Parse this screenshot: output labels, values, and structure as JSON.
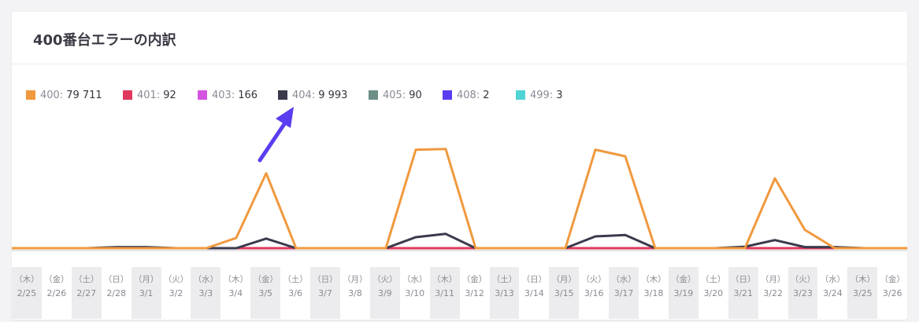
{
  "card": {
    "title": "400番台エラーの内訳"
  },
  "legend": [
    {
      "code": "400",
      "count": "79 711",
      "color": "#f0993e"
    },
    {
      "code": "401",
      "count": "92",
      "color": "#e0385c"
    },
    {
      "code": "403",
      "count": "166",
      "color": "#d655e0"
    },
    {
      "code": "404",
      "count": "9 993",
      "color": "#3a3a4c"
    },
    {
      "code": "405",
      "count": "90",
      "color": "#6d8f88"
    },
    {
      "code": "408",
      "count": "2",
      "color": "#5a3df0"
    },
    {
      "code": "499",
      "count": "3",
      "color": "#4fd4d6"
    }
  ],
  "annotation": {
    "type": "arrow",
    "color": "#5a3df0",
    "points_to": "404"
  },
  "dates": [
    {
      "weekday": "（木）",
      "date": "2/25"
    },
    {
      "weekday": "（金）",
      "date": "2/26"
    },
    {
      "weekday": "（土）",
      "date": "2/27"
    },
    {
      "weekday": "（日）",
      "date": "2/28"
    },
    {
      "weekday": "（月）",
      "date": "3/1"
    },
    {
      "weekday": "（火）",
      "date": "3/2"
    },
    {
      "weekday": "（水）",
      "date": "3/3"
    },
    {
      "weekday": "（木）",
      "date": "3/4"
    },
    {
      "weekday": "（金）",
      "date": "3/5"
    },
    {
      "weekday": "（土）",
      "date": "3/6"
    },
    {
      "weekday": "（日）",
      "date": "3/7"
    },
    {
      "weekday": "（月）",
      "date": "3/8"
    },
    {
      "weekday": "（火）",
      "date": "3/9"
    },
    {
      "weekday": "（水）",
      "date": "3/10"
    },
    {
      "weekday": "（木）",
      "date": "3/11"
    },
    {
      "weekday": "（金）",
      "date": "3/12"
    },
    {
      "weekday": "（土）",
      "date": "3/13"
    },
    {
      "weekday": "（日）",
      "date": "3/14"
    },
    {
      "weekday": "（月）",
      "date": "3/15"
    },
    {
      "weekday": "（火）",
      "date": "3/16"
    },
    {
      "weekday": "（水）",
      "date": "3/17"
    },
    {
      "weekday": "（木）",
      "date": "3/18"
    },
    {
      "weekday": "（金）",
      "date": "3/19"
    },
    {
      "weekday": "（土）",
      "date": "3/20"
    },
    {
      "weekday": "（日）",
      "date": "3/21"
    },
    {
      "weekday": "（月）",
      "date": "3/22"
    },
    {
      "weekday": "（火）",
      "date": "3/23"
    },
    {
      "weekday": "（水）",
      "date": "3/24"
    },
    {
      "weekday": "（木）",
      "date": "3/25"
    },
    {
      "weekday": "（金）",
      "date": "3/26"
    }
  ],
  "chart_data": {
    "type": "line",
    "title": "400番台エラーの内訳",
    "x": [
      "2/25",
      "2/26",
      "2/27",
      "2/28",
      "3/1",
      "3/2",
      "3/3",
      "3/4",
      "3/5",
      "3/6",
      "3/7",
      "3/8",
      "3/9",
      "3/10",
      "3/11",
      "3/12",
      "3/13",
      "3/14",
      "3/15",
      "3/16",
      "3/17",
      "3/18",
      "3/19",
      "3/20",
      "3/21",
      "3/22",
      "3/23",
      "3/24",
      "3/25",
      "3/26"
    ],
    "ylim": [
      0,
      14000
    ],
    "grid": false,
    "legend_position": "top-left",
    "series": [
      {
        "name": "400",
        "color": "#f0993e",
        "values": [
          0,
          0,
          0,
          0,
          0,
          0,
          0,
          1400,
          10200,
          0,
          0,
          0,
          0,
          13400,
          13500,
          0,
          0,
          0,
          0,
          13400,
          12500,
          0,
          0,
          0,
          0,
          9500,
          2500,
          0,
          0,
          0
        ]
      },
      {
        "name": "401",
        "color": "#e0385c",
        "values": [
          0,
          0,
          0,
          0,
          0,
          0,
          0,
          0,
          0,
          0,
          0,
          0,
          0,
          0,
          0,
          0,
          0,
          0,
          0,
          0,
          0,
          0,
          0,
          0,
          0,
          0,
          0,
          0,
          0,
          0
        ]
      },
      {
        "name": "403",
        "color": "#d655e0",
        "values": [
          0,
          0,
          0,
          0,
          0,
          0,
          0,
          0,
          0,
          0,
          0,
          0,
          0,
          0,
          0,
          0,
          0,
          0,
          0,
          0,
          0,
          0,
          0,
          0,
          0,
          0,
          0,
          0,
          0,
          0
        ]
      },
      {
        "name": "404",
        "color": "#3a3a4c",
        "values": [
          0,
          0,
          0,
          150,
          150,
          0,
          0,
          0,
          1300,
          0,
          0,
          0,
          0,
          1500,
          1950,
          0,
          0,
          0,
          0,
          1600,
          1800,
          0,
          0,
          0,
          200,
          1100,
          150,
          150,
          0,
          0
        ]
      },
      {
        "name": "405",
        "color": "#6d8f88",
        "values": [
          0,
          0,
          0,
          0,
          0,
          0,
          0,
          0,
          0,
          0,
          0,
          0,
          0,
          0,
          0,
          0,
          0,
          0,
          0,
          0,
          0,
          0,
          0,
          0,
          0,
          0,
          0,
          0,
          0,
          0
        ]
      },
      {
        "name": "408",
        "color": "#5a3df0",
        "values": [
          0,
          0,
          0,
          0,
          0,
          0,
          0,
          0,
          0,
          0,
          0,
          0,
          0,
          0,
          0,
          0,
          0,
          0,
          0,
          0,
          0,
          0,
          0,
          0,
          0,
          0,
          0,
          0,
          0,
          0
        ]
      },
      {
        "name": "499",
        "color": "#4fd4d6",
        "values": [
          0,
          0,
          0,
          0,
          0,
          0,
          0,
          0,
          0,
          0,
          0,
          0,
          0,
          0,
          0,
          0,
          0,
          0,
          0,
          0,
          0,
          0,
          0,
          0,
          0,
          0,
          0,
          0,
          0,
          0
        ]
      }
    ]
  }
}
